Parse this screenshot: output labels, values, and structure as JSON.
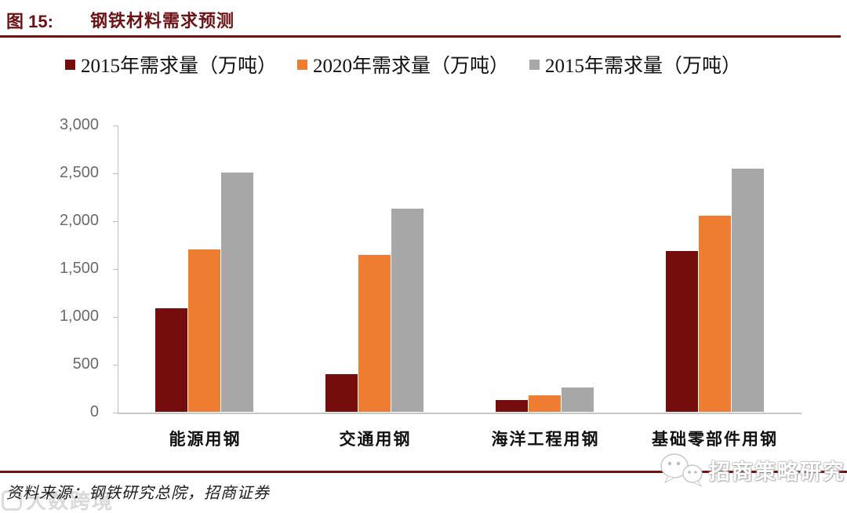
{
  "figure": {
    "label": "图 15:",
    "title": "钢铁材料需求预测"
  },
  "accent_color": "#701114",
  "legend": [
    {
      "label": "2015年需求量（万吨）",
      "color": "#750D0C"
    },
    {
      "label": "2020年需求量（万吨）",
      "color": "#EE7D31"
    },
    {
      "label": "2015年需求量（万吨）",
      "color": "#A7A7A7"
    }
  ],
  "chart_data": {
    "type": "bar",
    "title": "钢铁材料需求预测",
    "categories": [
      "能源用钢",
      "交通用钢",
      "海洋工程用钢",
      "基础零部件用钢"
    ],
    "series": [
      {
        "name": "2015年需求量（万吨）",
        "color": "#750D0C",
        "values": [
          1080,
          390,
          120,
          1680
        ]
      },
      {
        "name": "2020年需求量（万吨）",
        "color": "#EE7D31",
        "values": [
          1700,
          1640,
          170,
          2050
        ]
      },
      {
        "name": "2015年需求量（万吨）",
        "color": "#A7A7A7",
        "values": [
          2500,
          2120,
          250,
          2540
        ]
      }
    ],
    "xlabel": "",
    "ylabel": "",
    "ylim": [
      0,
      3000
    ],
    "ytick_step": 500,
    "yticks": [
      "3,000",
      "2,500",
      "2,000",
      "1,500",
      "1,000",
      "500",
      "0"
    ],
    "grid": false,
    "legend_position": "top"
  },
  "source_note": "资料来源：钢铁研究总院，招商证券",
  "watermarks": {
    "bottom_left": "大数跨境",
    "bottom_right": "招商策略研究"
  }
}
